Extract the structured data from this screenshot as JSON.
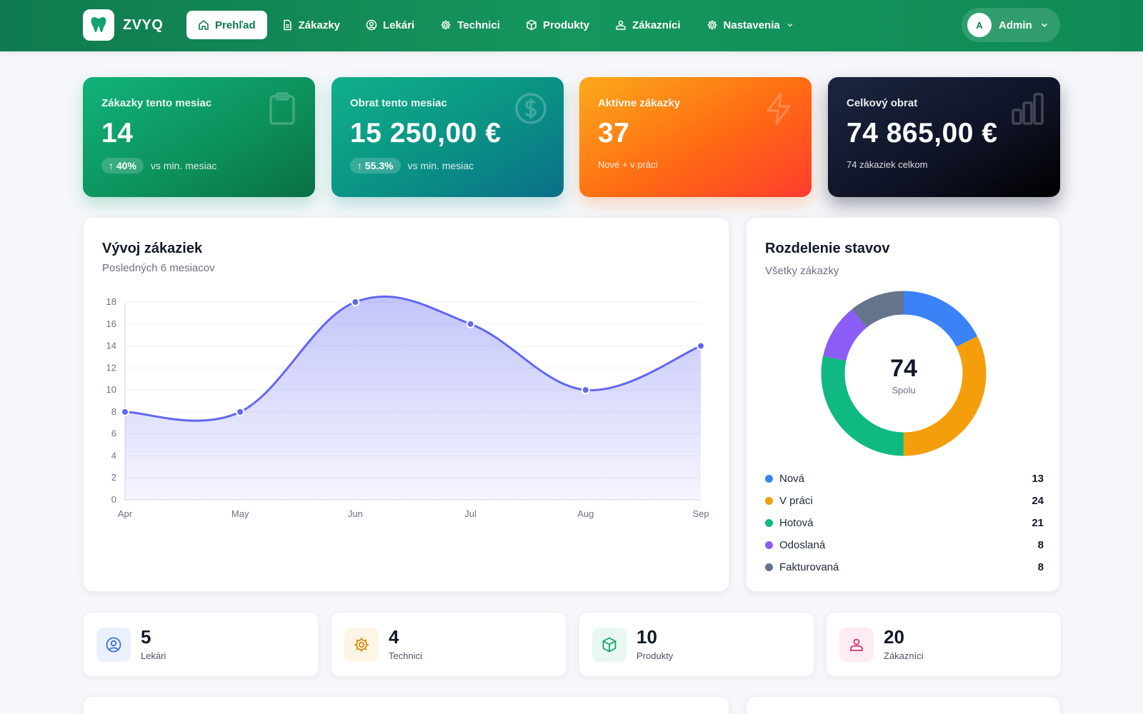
{
  "brand": {
    "name": "ZVYQ"
  },
  "nav": {
    "items": [
      {
        "label": "Prehľad",
        "icon": "home-icon",
        "active": true
      },
      {
        "label": "Zákazky",
        "icon": "document-icon"
      },
      {
        "label": "Lekári",
        "icon": "user-circle-icon"
      },
      {
        "label": "Technici",
        "icon": "gear-icon"
      },
      {
        "label": "Produkty",
        "icon": "box-icon"
      },
      {
        "label": "Zákazníci",
        "icon": "users-icon"
      },
      {
        "label": "Nastavenia",
        "icon": "gear-icon",
        "has_dropdown": true
      }
    ]
  },
  "user": {
    "initial": "A",
    "name": "Admin"
  },
  "kpis": [
    {
      "label": "Zákazky tento mesiac",
      "value": "14",
      "trend": "↑ 40%",
      "trend_text": "vs min. mesiac",
      "icon": "clipboard-icon"
    },
    {
      "label": "Obrat tento mesiac",
      "value": "15 250,00 €",
      "trend": "↑ 55.3%",
      "trend_text": "vs min. mesiac",
      "icon": "dollar-icon"
    },
    {
      "label": "Aktívne zákazky",
      "value": "37",
      "sub": "Nové + v práci",
      "icon": "lightning-icon"
    },
    {
      "label": "Celkový obrat",
      "value": "74 865,00 €",
      "sub": "74 zákaziek celkom",
      "icon": "bar-chart-icon"
    }
  ],
  "trend_chart": {
    "title": "Vývoj zákaziek",
    "subtitle": "Posledných 6 mesiacov"
  },
  "status_chart": {
    "title": "Rozdelenie stavov",
    "subtitle": "Všetky zákazky",
    "total": "74",
    "total_label": "Spolu"
  },
  "chart_data": [
    {
      "type": "area",
      "title": "Vývoj zákaziek",
      "x": [
        "Apr",
        "May",
        "Jun",
        "Jul",
        "Aug",
        "Sep"
      ],
      "series": [
        {
          "values": [
            8,
            8,
            18,
            16,
            10,
            14
          ],
          "color": "#6366f1"
        }
      ],
      "ylim": [
        0,
        18
      ],
      "yticks": [
        0,
        2,
        4,
        6,
        8,
        10,
        12,
        14,
        16,
        18
      ],
      "grid": true
    },
    {
      "type": "pie",
      "title": "Rozdelenie stavov",
      "categories": [
        "Nová",
        "V práci",
        "Hotová",
        "Odoslaná",
        "Fakturovaná"
      ],
      "values": [
        13,
        24,
        21,
        8,
        8
      ],
      "colors": [
        "#3b82f6",
        "#f59e0b",
        "#10b981",
        "#8b5cf6",
        "#64748b"
      ],
      "center_value": "74",
      "center_label": "Spolu"
    }
  ],
  "stats": [
    {
      "value": "5",
      "label": "Lekári",
      "icon": "user-circle-icon",
      "color": "#3b6fd8",
      "bg": "#eaf1fd"
    },
    {
      "value": "4",
      "label": "Technici",
      "icon": "gear-icon",
      "color": "#d98a0a",
      "bg": "#fdf6e6"
    },
    {
      "value": "10",
      "label": "Produkty",
      "icon": "box-icon",
      "color": "#12a36c",
      "bg": "#e8f8f0"
    },
    {
      "value": "20",
      "label": "Zákazníci",
      "icon": "users-icon",
      "color": "#d6337a",
      "bg": "#fdecf3"
    }
  ]
}
